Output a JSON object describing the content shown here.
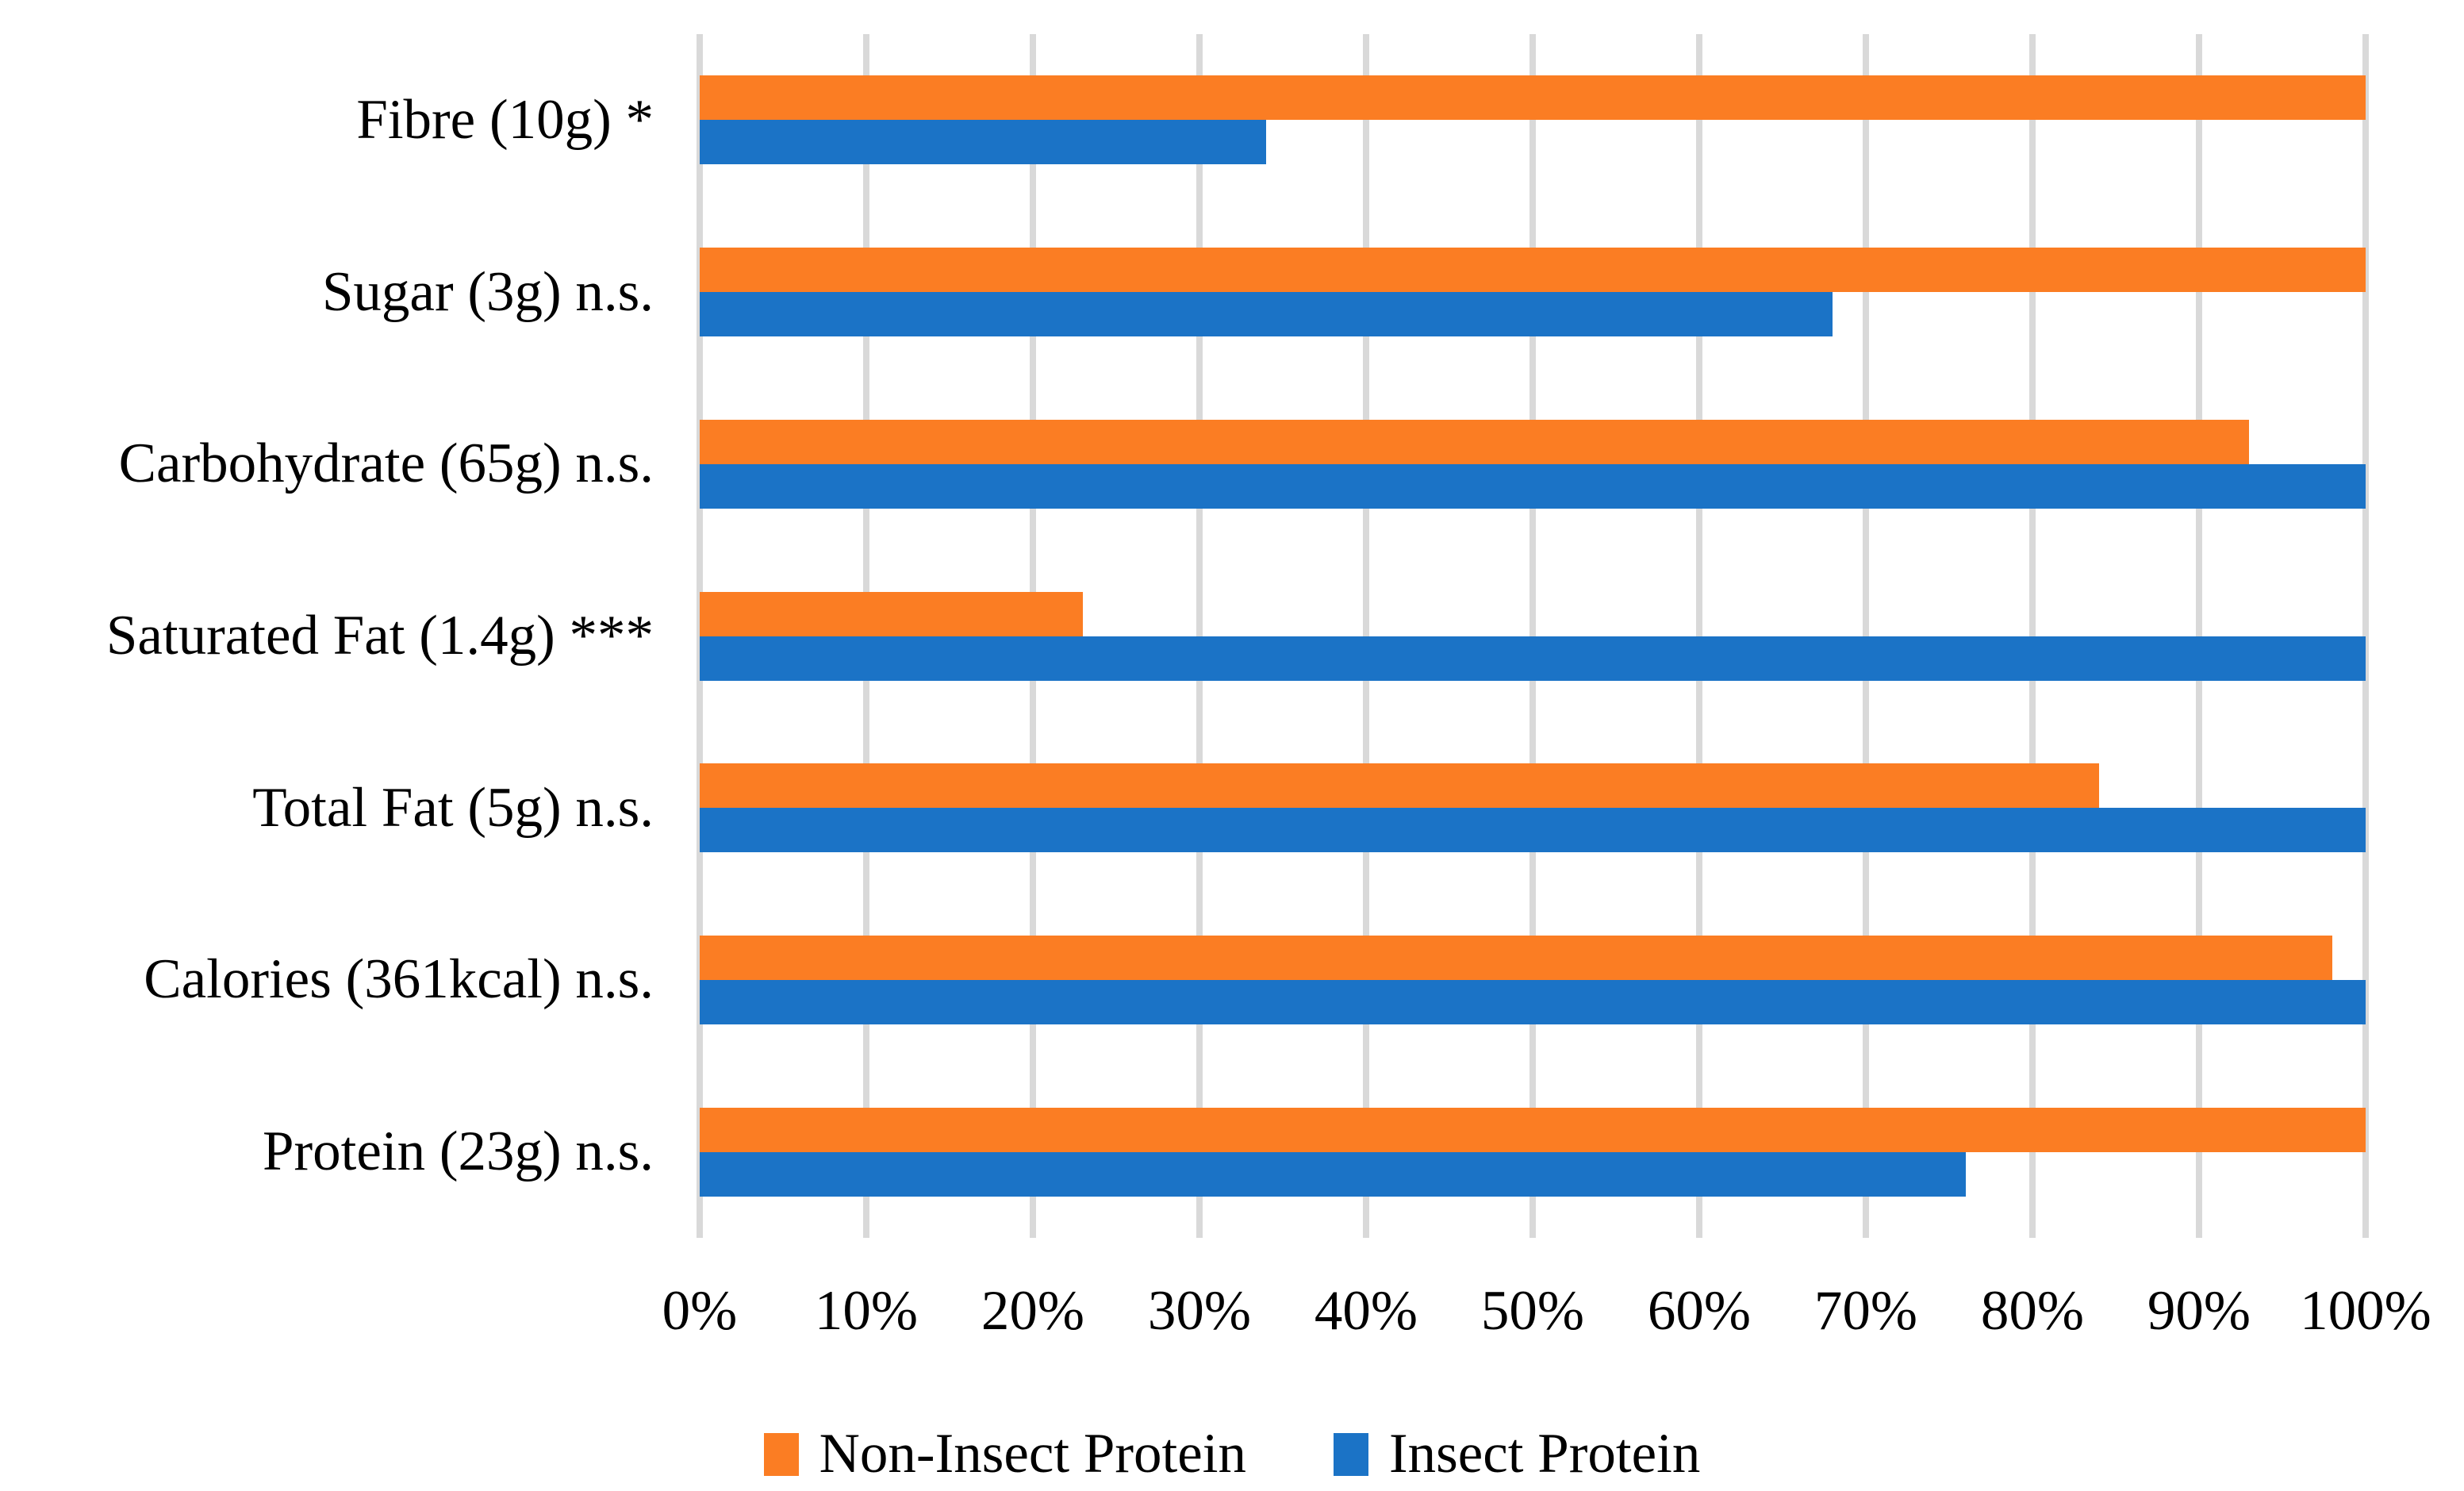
{
  "figure": {
    "background": "#FFFFFF",
    "text_color": "#000000"
  },
  "chart_data": {
    "type": "bar",
    "orientation": "horizontal",
    "title": "",
    "categories": [
      "Fibre (10g) *",
      "Sugar (3g) n.s.",
      "Carbohydrate (65g) n.s.",
      "Saturated Fat (1.4g) ***",
      "Total Fat (5g) n.s.",
      "Calories (361kcal) n.s.",
      "Protein (23g) n.s."
    ],
    "series": [
      {
        "name": "Non-Insect Protein",
        "color": "#FB7D23",
        "values": [
          100,
          100,
          93,
          23,
          84,
          98,
          100
        ]
      },
      {
        "name": "Insect Protein",
        "color": "#1B73C6",
        "values": [
          34,
          68,
          100,
          100,
          100,
          100,
          76
        ]
      }
    ],
    "x_axis": {
      "min": 0,
      "max": 100,
      "tick_step": 10,
      "ticks": [
        "0%",
        "10%",
        "20%",
        "30%",
        "40%",
        "50%",
        "60%",
        "70%",
        "80%",
        "90%",
        "100%"
      ]
    },
    "grid": true,
    "gridline_color": "#D9D9D9",
    "legend": {
      "position": "bottom",
      "entries": [
        "Non-Insect Protein",
        "Insect Protein"
      ]
    }
  }
}
